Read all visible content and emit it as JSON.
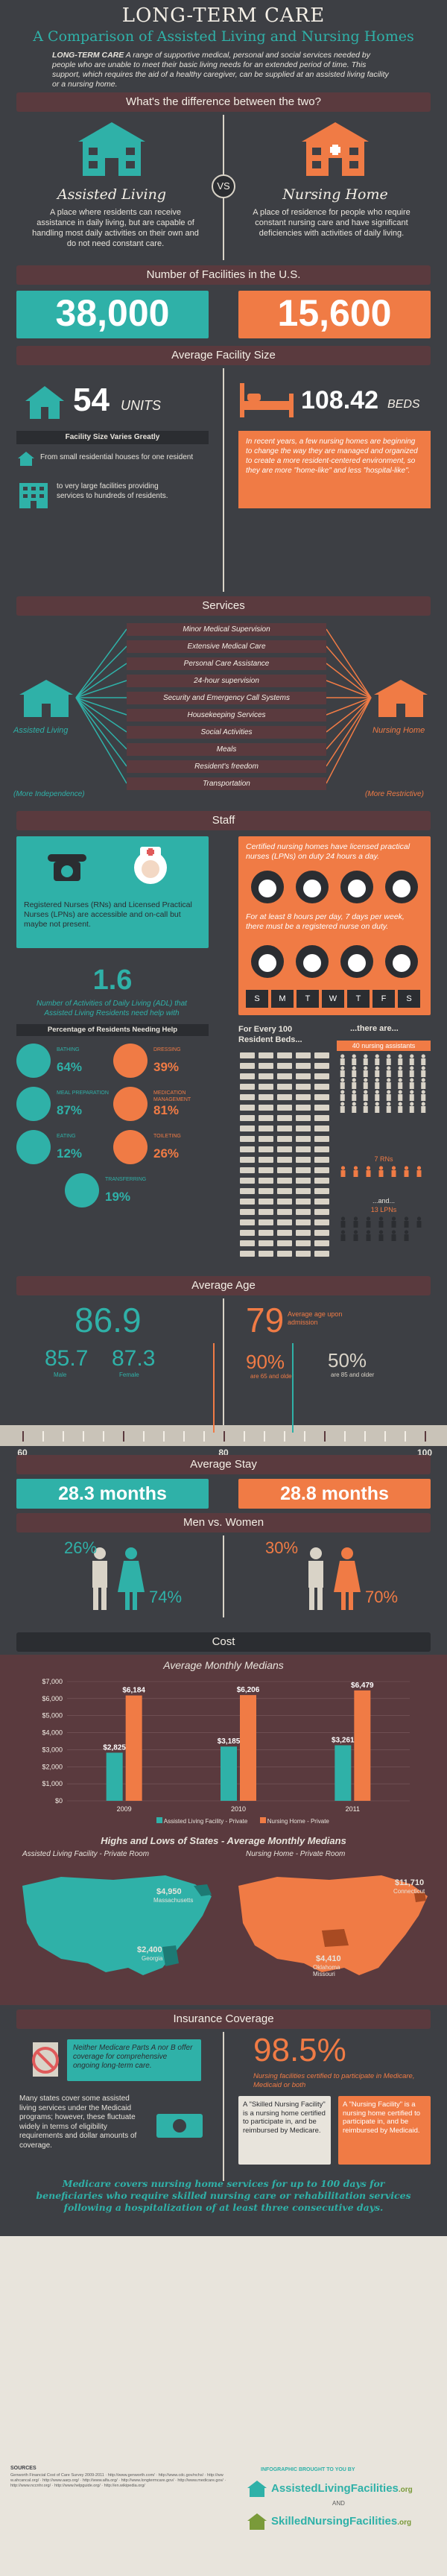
{
  "header": {
    "title": "LONG-TERM CARE",
    "subtitle": "A Comparison of Assisted Living and Nursing Homes",
    "intro_lead": "LONG-TERM CARE",
    "intro": "A range of supportive medical, personal and social services needed by people who are unable to meet their basic living needs for an extended period of time. This support, which requires the aid of a healthy caregiver, can be supplied at an assisted living facility or a nursing home."
  },
  "difference": {
    "heading": "What's the difference between the two?",
    "vs": "VS",
    "al_title": "Assisted Living",
    "al_text": "A place where residents can receive assistance in daily living, but are capable of handling most daily activities on their own and do not need constant care.",
    "nh_title": "Nursing Home",
    "nh_text": "A place of residence for people who require constant nursing care and have significant deficiencies with activities of daily living."
  },
  "facilities": {
    "heading": "Number of Facilities in the U.S.",
    "al_count": "38,000",
    "nh_count": "15,600"
  },
  "size": {
    "heading": "Average Facility Size",
    "al_value": "54",
    "al_unit": "UNITS",
    "nh_value": "108.42",
    "nh_unit": "BEDS",
    "varies_label": "Facility Size Varies Greatly",
    "small_text": "From small residential houses for one resident",
    "large_text": "to very large facilities providing services to hundreds of residents.",
    "nh_text": "In recent years, a few nursing homes are beginning to change the way they are managed and organized to create a more resident-centered environment, so they are more \"home-like\" and less \"hospital-like\"."
  },
  "services": {
    "heading": "Services",
    "items": [
      "Minor Medical Supervision",
      "Extensive Medical Care",
      "Personal Care Assistance",
      "24-hour supervision",
      "Security and Emergency Call Systems",
      "Housekeeping Services",
      "Social Activities",
      "Meals",
      "Resident's freedom",
      "Transportation"
    ],
    "al_label": "Assisted Living",
    "nh_label": "Nursing Home",
    "more_independence": "(More Independence)",
    "more_restrictive": "(More Restrictive)"
  },
  "staff": {
    "heading": "Staff",
    "al_text": "Registered Nurses (RNs) and Licensed Practical Nurses (LPNs) are accessible and on-call but maybe not present.",
    "adl_value": "1.6",
    "adl_text": "Number of Activities of Daily Living (ADL) that Assisted Living Residents need help with",
    "nh_text1": "Certified nursing homes have licensed practical nurses (LPNs) on duty 24 hours a day.",
    "nh_text2": "For at least 8 hours per day, 7 days per week, there must be a registered nurse on duty.",
    "days": [
      "S",
      "M",
      "T",
      "W",
      "T",
      "F",
      "S"
    ],
    "needing_help_label": "Percentage of Residents Needing Help",
    "help": [
      {
        "label": "Bathing",
        "value": "64%"
      },
      {
        "label": "Dressing",
        "value": "39%"
      },
      {
        "label": "Meal Preparation",
        "value": "87%"
      },
      {
        "label": "Medication Management",
        "value": "81%"
      },
      {
        "label": "Eating",
        "value": "12%"
      },
      {
        "label": "Toileting",
        "value": "26%"
      },
      {
        "label": "Transferring",
        "value": "19%"
      }
    ],
    "per100_label": "For Every 100 Resident Beds...",
    "there_are": "...there are...",
    "nursing_assistants": "40 nursing assistants",
    "rns": "7 RNs",
    "and": "...and...",
    "lpns": "13 LPNs"
  },
  "age": {
    "heading": "Average Age",
    "al_avg": "86.9",
    "al_male": "85.7",
    "al_female": "87.3",
    "male_label": "Male",
    "female_label": "Female",
    "nh_avg": "79",
    "nh_avg_label": "Average age upon admission",
    "nh_90": "90%",
    "nh_90_label": "are 65 and older",
    "nh_50": "50%",
    "nh_50_label": "are 85 and older",
    "ticks": [
      "60",
      "80",
      "100"
    ]
  },
  "stay": {
    "heading": "Average Stay",
    "al": "28.3 months",
    "nh": "28.8 months"
  },
  "gender": {
    "heading": "Men vs. Women",
    "al_men": "26%",
    "al_women": "74%",
    "nh_men": "30%",
    "nh_women": "70%"
  },
  "cost": {
    "heading": "Cost",
    "chart_title": "Average Monthly Medians",
    "legend_al": "Assisted Living Facility - Private",
    "legend_nh": "Nursing Home - Private",
    "states_title": "Highs and Lows of States - Average Monthly Medians",
    "al_map_title": "Assisted Living Facility - Private Room",
    "nh_map_title": "Nursing Home - Private Room",
    "al_high": "$4,950",
    "al_high_state": "Massachusetts",
    "al_low": "$2,400",
    "al_low_state": "Georgia",
    "nh_high": "$11,710",
    "nh_high_state": "Connecticut",
    "nh_low": "$4,410",
    "nh_low_state": "Oklahoma Missouri"
  },
  "chart_data": {
    "type": "bar",
    "title": "Average Monthly Medians",
    "categories": [
      "2009",
      "2010",
      "2011"
    ],
    "series": [
      {
        "name": "Assisted Living Facility - Private",
        "values": [
          2825,
          3185,
          3261
        ],
        "labels": [
          "$2,825",
          "$3,185",
          "$3,261"
        ],
        "color": "#2fb1a8"
      },
      {
        "name": "Nursing Home - Private",
        "values": [
          6184,
          6206,
          6479
        ],
        "labels": [
          "$6,184",
          "$6,206",
          "$6,479"
        ],
        "color": "#f07b45"
      }
    ],
    "ylim": [
      0,
      7000
    ],
    "yticks": [
      "$0",
      "$1,000",
      "$2,000",
      "$3,000",
      "$4,000",
      "$5,000",
      "$6,000",
      "$7,000"
    ],
    "legend": "bottom"
  },
  "insurance": {
    "heading": "Insurance Coverage",
    "al_box": "Neither Medicare Parts A nor B offer coverage for comprehensive ongoing long-term care.",
    "al_text": "Many states cover some assisted living services under the Medicaid programs; however, these fluctuate widely in terms of eligibility requirements and dollar amounts of coverage.",
    "nh_pct": "98.5%",
    "nh_pct_text": "Nursing facilities certified to participate in Medicare, Medicaid or both",
    "snf_box": "A \"Skilled Nursing Facility\" is a nursing home certified to participate in, and be reimbursed by Medicare.",
    "nf_box": "A \"Nursing Facility\" is a nursing home certified to participate in, and be reimbursed by Medicaid.",
    "medicare": "Medicare covers nursing home services for up to 100 days for beneficiaries who require skilled nursing care or rehabilitation services following a hospitalization of at least three consecutive days."
  },
  "footer": {
    "sources_label": "SOURCES",
    "sources": "Genworth Financial Cost of Care Survey 2009-2011 · http://www.genworth.com/ · http://www.cdc.gov/nchs/ · http://www.ahcancal.org/ · http://www.aarp.org/ · http://www.alfa.org/ · http://www.longtermcare.gov/ · http://www.medicare.gov/ · http://www.nccnhr.org/ · http://www.helpguide.org/ · http://en.wikipedia.org/",
    "brought": "INFOGRAPHIC BROUGHT TO YOU BY",
    "brand1": "AssistedLivingFacilities",
    "brand1_tld": ".org",
    "and": "AND",
    "brand2": "SkilledNursingFacilities",
    "brand2_tld": ".org"
  }
}
